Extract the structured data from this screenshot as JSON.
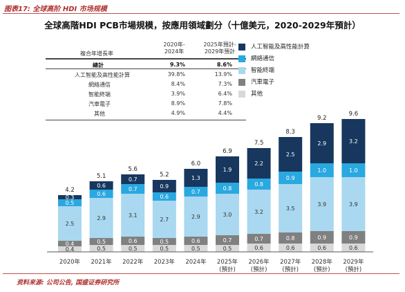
{
  "caption": "图表17: 全球高阶 HDI 市场规模",
  "source": "资料来源: 公司公告, 国盛证券研究所",
  "chart_data": {
    "type": "bar",
    "stacked": true,
    "title": "全球高階HDI PCB市場規模，按應用領域劃分（十億美元，2020-2029年預計）",
    "categories": [
      "2020年",
      "2021年",
      "2022年",
      "2023年",
      "2024年",
      "2025年\n(預計)",
      "2026年\n(預計)",
      "2027年\n(預計)",
      "2028年\n(預計)",
      "2029年\n(預計)"
    ],
    "series": [
      {
        "name": "其他",
        "color": "#d9d9d9",
        "values": [
          0.4,
          0.5,
          0.5,
          0.5,
          0.5,
          0.5,
          0.6,
          0.6,
          0.6,
          0.6
        ]
      },
      {
        "name": "汽車電子",
        "color": "#808080",
        "values": [
          0.4,
          0.5,
          0.6,
          0.5,
          0.6,
          0.7,
          0.7,
          0.8,
          0.9,
          0.9
        ]
      },
      {
        "name": "智能終端",
        "color": "#a9d8f0",
        "values": [
          2.5,
          2.9,
          3.1,
          2.7,
          2.9,
          3.0,
          3.2,
          3.5,
          3.9,
          3.9
        ]
      },
      {
        "name": "網絡通信",
        "color": "#2aa8e0",
        "values": [
          0.5,
          0.6,
          0.7,
          0.6,
          0.7,
          0.8,
          0.8,
          0.9,
          1.0,
          1.0
        ]
      },
      {
        "name": "人工智能及高性能計算",
        "color": "#17375e",
        "values": [
          0.3,
          0.6,
          0.7,
          0.9,
          1.3,
          1.9,
          2.2,
          2.5,
          2.9,
          3.2
        ]
      }
    ],
    "totals": [
      4.2,
      5.1,
      5.6,
      5.2,
      6.0,
      6.9,
      7.5,
      8.3,
      9.2,
      9.6
    ],
    "ylim": [
      0,
      10
    ],
    "legend_position": "top-right",
    "cagr_table": {
      "col_header": "複合年增長率",
      "period_headers": [
        "2020年-\n2024年",
        "2025年預計-\n2029年預計"
      ],
      "rows": [
        {
          "label": "總計",
          "v1": "9.3%",
          "v2": "8.6%",
          "bold": true
        },
        {
          "label": "人工智能及高性能計算",
          "v1": "39.8%",
          "v2": "13.9%"
        },
        {
          "label": "網絡通信",
          "v1": "8.4%",
          "v2": "7.3%"
        },
        {
          "label": "智能終端",
          "v1": "3.9%",
          "v2": "6.4%"
        },
        {
          "label": "汽車電子",
          "v1": "8.9%",
          "v2": "7.8%"
        },
        {
          "label": "其他",
          "v1": "4.9%",
          "v2": "4.4%"
        }
      ]
    }
  }
}
